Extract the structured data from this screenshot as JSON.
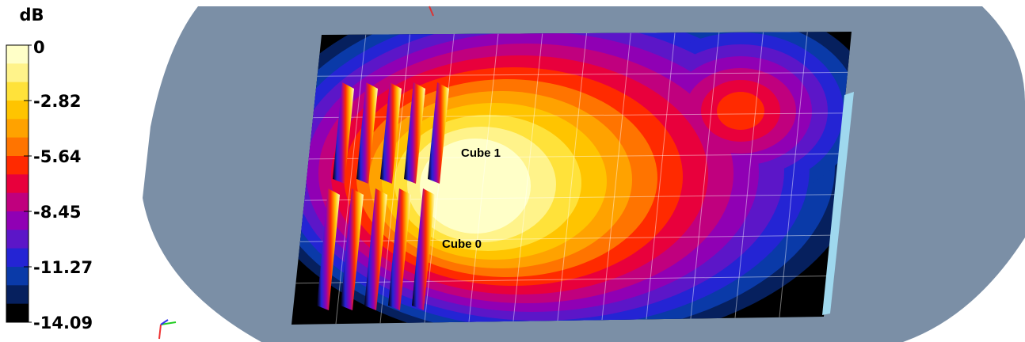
{
  "colorbar": {
    "title": "dB",
    "ticks": [
      0,
      -2.82,
      -5.64,
      -8.45,
      -11.27,
      -14.09
    ],
    "colors": [
      "#ffffc8",
      "#fff38a",
      "#ffe23a",
      "#ffc400",
      "#ffa200",
      "#ff7400",
      "#ff2a00",
      "#e8003c",
      "#c0007e",
      "#9000b4",
      "#5c16c8",
      "#2424d4",
      "#0a3aa8",
      "#06205e",
      "#000000"
    ]
  },
  "labels": [
    "Cube 1",
    "Cube 0"
  ]
}
